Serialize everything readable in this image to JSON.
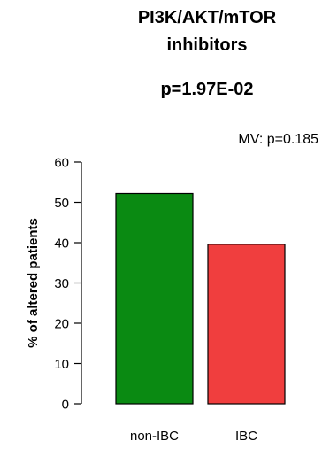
{
  "chart_data": {
    "type": "bar",
    "title_lines": [
      "PI3K/AKT/mTOR",
      "inhibitors"
    ],
    "pvalue_label": "p=1.97E-02",
    "annotation": "MV: p=0.185",
    "ylabel": "% of altered patients",
    "xlabel": "",
    "categories": [
      "non-IBC",
      "IBC"
    ],
    "values": [
      52.2,
      39.6
    ],
    "colors": [
      "#0a8a12",
      "#f03e3e"
    ],
    "ylim": [
      0,
      60
    ],
    "yticks": [
      0,
      10,
      20,
      30,
      40,
      50,
      60
    ],
    "grid": false,
    "legend": false
  }
}
